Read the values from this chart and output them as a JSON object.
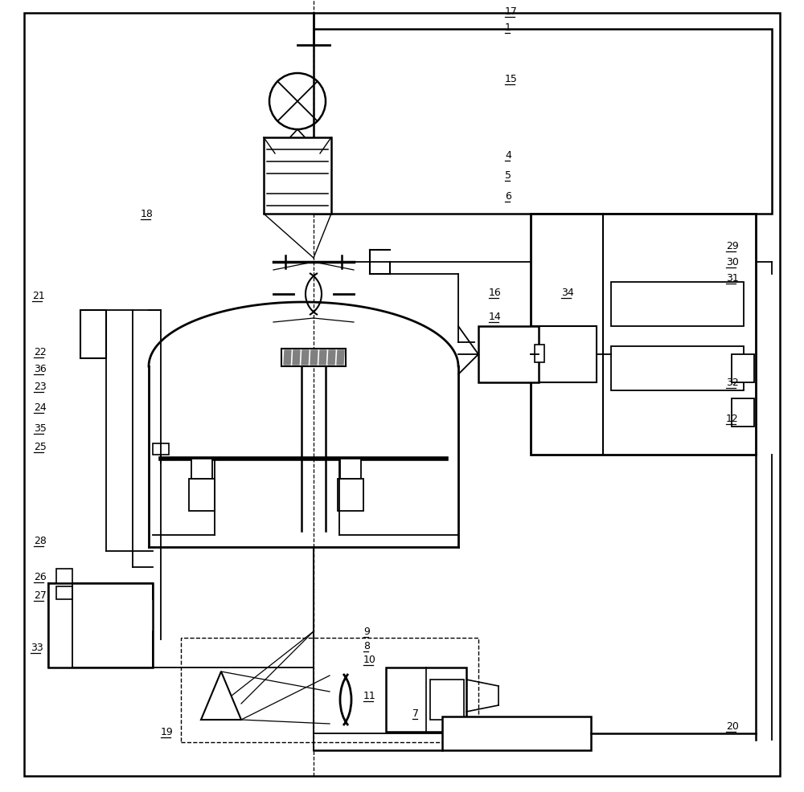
{
  "bg_color": "#ffffff",
  "line_color": "#000000",
  "fig_width": 10.0,
  "fig_height": 9.87
}
